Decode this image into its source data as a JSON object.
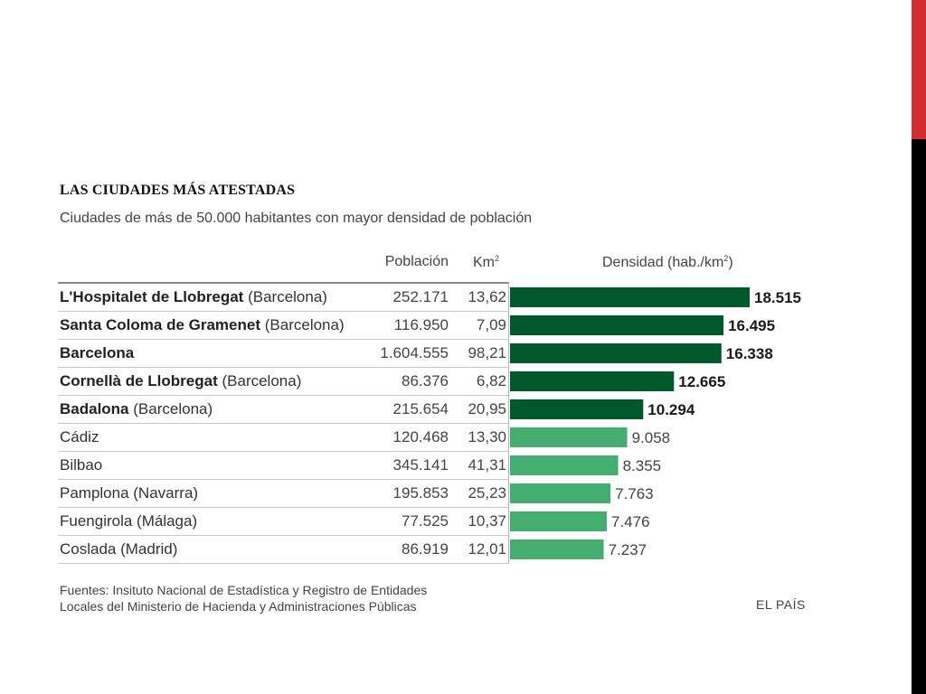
{
  "chart_data": {
    "type": "bar",
    "orientation": "horizontal",
    "title": "LAS CIUDADES MÁS ATESTADAS",
    "subtitle": "Ciudades de más de 50.000 habitantes con  mayor densidad de población",
    "columns": {
      "population": "Población",
      "area": "Km",
      "area_sup": "2",
      "density": "Densidad (hab./km",
      "density_sup": "2",
      "density_close": ")"
    },
    "rows": [
      {
        "city": "L'Hospitalet de Llobregat",
        "province": "(Barcelona)",
        "population": "252.171",
        "km2": "13,62",
        "density": 18515,
        "density_label": "18.515",
        "highlight": true
      },
      {
        "city": "Santa Coloma de Gramenet",
        "province": "(Barcelona)",
        "population": "116.950",
        "km2": "7,09",
        "density": 16495,
        "density_label": "16.495",
        "highlight": true
      },
      {
        "city": "Barcelona",
        "province": "",
        "population": "1.604.555",
        "km2": "98,21",
        "density": 16338,
        "density_label": "16.338",
        "highlight": true
      },
      {
        "city": "Cornellà de Llobregat",
        "province": "(Barcelona)",
        "population": "86.376",
        "km2": "6,82",
        "density": 12665,
        "density_label": "12.665",
        "highlight": true
      },
      {
        "city": "Badalona",
        "province": "(Barcelona)",
        "population": "215.654",
        "km2": "20,95",
        "density": 10294,
        "density_label": "10.294",
        "highlight": true
      },
      {
        "city": "Cádiz",
        "province": "",
        "population": "120.468",
        "km2": "13,30",
        "density": 9058,
        "density_label": "9.058",
        "highlight": false
      },
      {
        "city": "Bilbao",
        "province": "",
        "population": "345.141",
        "km2": "41,31",
        "density": 8355,
        "density_label": "8.355",
        "highlight": false
      },
      {
        "city": "Pamplona (Navarra)",
        "province": "",
        "population": "195.853",
        "km2": "25,23",
        "density": 7763,
        "density_label": "7.763",
        "highlight": false
      },
      {
        "city": "Fuengirola (Málaga)",
        "province": "",
        "population": "77.525",
        "km2": "10,37",
        "density": 7476,
        "density_label": "7.476",
        "highlight": false
      },
      {
        "city": "Coslada (Madrid)",
        "province": "",
        "population": "86.919",
        "km2": "12,01",
        "density": 7237,
        "density_label": "7.237",
        "highlight": false
      }
    ],
    "colors": {
      "highlight": "#00582b",
      "normal": "#44ae71",
      "accent_bar": "#d52b32"
    }
  },
  "footer": {
    "source_line1": "Fuentes: Insituto Nacional de Estadística y Registro de Entidades",
    "source_line2": "Locales del Ministerio de Hacienda y Administraciones Públicas",
    "brand": "EL PAÍS"
  }
}
